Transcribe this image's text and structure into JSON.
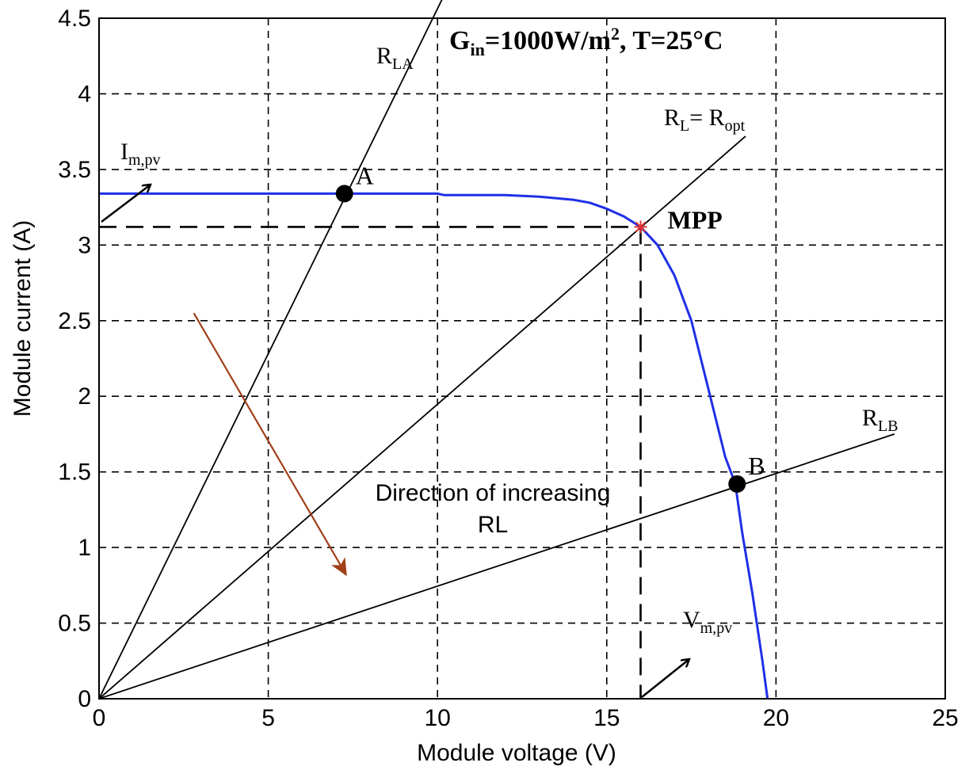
{
  "chart_data": {
    "type": "line",
    "xlabel": "Module voltage (V)",
    "ylabel": "Module current (A)",
    "xlim": [
      0,
      25
    ],
    "ylim": [
      0,
      4.5
    ],
    "xticks": [
      "0",
      "5",
      "10",
      "15",
      "20",
      "25"
    ],
    "yticks": [
      "0",
      "0.5",
      "1",
      "1.5",
      "2",
      "2.5",
      "3",
      "3.5",
      "4",
      "4.5"
    ],
    "grid": "dashed",
    "colors": {
      "iv_curve": "#1f2fe6",
      "direction_arrow": "#a0401a",
      "mpp_marker": "#e23030"
    },
    "header": {
      "main": "G",
      "sub": "in",
      "mid": "=1000W/m",
      "sup": "2",
      "tail": ", T=25°C"
    },
    "series": [
      {
        "type": "iv_curve",
        "x": [
          0,
          5,
          10,
          10.2,
          12,
          13,
          14,
          14.5,
          15,
          15.5,
          16,
          16.5,
          17,
          17.5,
          18,
          18.5,
          18.8,
          19,
          19.3,
          19.6,
          19.75
        ],
        "y": [
          3.34,
          3.34,
          3.34,
          3.33,
          3.33,
          3.32,
          3.3,
          3.28,
          3.24,
          3.19,
          3.12,
          3.0,
          2.8,
          2.5,
          2.05,
          1.6,
          1.42,
          1.1,
          0.7,
          0.25,
          0
        ]
      },
      {
        "type": "load_line",
        "x": [
          0,
          10.3
        ],
        "y": [
          0,
          4.7
        ]
      },
      {
        "type": "load_line",
        "x": [
          0,
          19.1
        ],
        "y": [
          0,
          3.72
        ]
      },
      {
        "type": "load_line",
        "x": [
          0,
          23.5
        ],
        "y": [
          0,
          1.75
        ]
      }
    ],
    "load_labels": [
      {
        "main": "R",
        "sub": "LA",
        "pos": [
          7.85,
          4.2
        ]
      },
      {
        "main": "R",
        "sub": "L",
        "mid": "= R",
        "sub2": "opt",
        "pos": [
          16.5,
          3.9
        ]
      },
      {
        "main": "R",
        "sub": "LB",
        "pos": [
          22.3,
          1.8
        ]
      }
    ],
    "points": [
      {
        "label": "A",
        "x": 7.25,
        "y": 3.34
      },
      {
        "label": "B",
        "x": 18.85,
        "y": 1.42
      }
    ],
    "mpp": {
      "label": "MPP",
      "x": 16.0,
      "y": 3.12
    },
    "current_annotation": {
      "main": "I",
      "sub": "m,pv"
    },
    "voltage_annotation": {
      "main": "V",
      "sub": "m,pv"
    },
    "direction_arrow": {
      "from": [
        2.8,
        2.55
      ],
      "to": [
        7.3,
        0.82
      ]
    },
    "direction_text": [
      "Direction of increasing",
      "RL"
    ]
  }
}
